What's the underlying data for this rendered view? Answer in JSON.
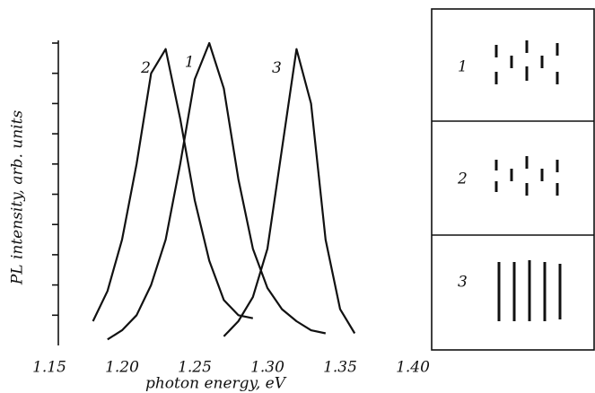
{
  "chart_data": {
    "type": "line",
    "xlabel": "photon energy, eV",
    "ylabel": "PL intensity, arb. units",
    "x": [
      1.18,
      1.19,
      1.2,
      1.21,
      1.22,
      1.23,
      1.24,
      1.25,
      1.26,
      1.27,
      1.28,
      1.29,
      1.3,
      1.31,
      1.32,
      1.33,
      1.34,
      1.35,
      1.36
    ],
    "series": [
      {
        "name": "1",
        "color": "#111111",
        "values": [
          null,
          0.2,
          0.5,
          1.0,
          2.0,
          3.5,
          6.0,
          8.8,
          10,
          8.5,
          5.5,
          3.2,
          1.9,
          1.2,
          0.8,
          0.5,
          0.4,
          null,
          null
        ]
      },
      {
        "name": "2",
        "color": "#111111",
        "values": [
          0.8,
          1.8,
          3.5,
          6.0,
          9.0,
          9.8,
          7.5,
          4.8,
          2.8,
          1.5,
          1.0,
          0.9,
          null,
          null,
          null,
          null,
          null,
          null,
          null
        ]
      },
      {
        "name": "3",
        "color": "#111111",
        "values": [
          null,
          null,
          null,
          null,
          null,
          null,
          null,
          null,
          null,
          0.3,
          0.8,
          1.6,
          3.2,
          6.5,
          9.8,
          8.0,
          3.5,
          1.2,
          0.4
        ]
      }
    ],
    "xlim": [
      1.15,
      1.4
    ],
    "xticks": [
      1.15,
      {
        "value": 1.2,
        "label": "1.20"
      },
      1.25,
      {
        "value": 1.3,
        "label": "1.30"
      },
      1.35,
      {
        "value": 1.4,
        "label": "1.40"
      }
    ],
    "ylim": [
      0,
      10
    ],
    "yticks": [
      1,
      2,
      3,
      4,
      5,
      6,
      7,
      8,
      9,
      10
    ],
    "panels": [
      "1",
      "2",
      "3"
    ]
  }
}
